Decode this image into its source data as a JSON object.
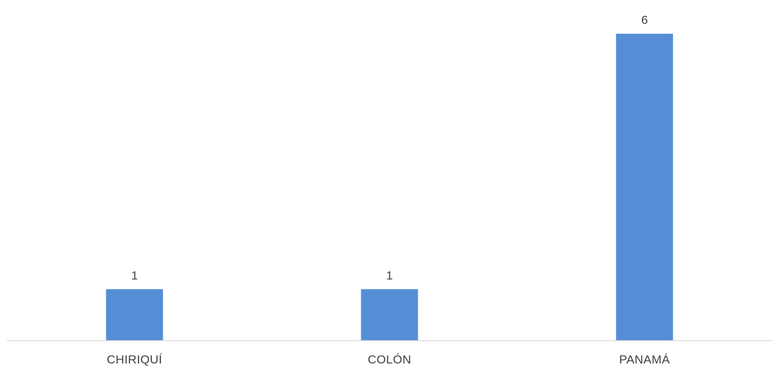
{
  "chart_data": {
    "type": "bar",
    "categories": [
      "CHIRIQUÍ",
      "COLÓN",
      "PANAMÁ"
    ],
    "values": [
      1,
      1,
      6
    ],
    "title": "",
    "xlabel": "",
    "ylabel": "",
    "ylim": [
      0,
      6
    ],
    "grid": false,
    "legend": "none",
    "data_labels": true,
    "colors": {
      "bar": "#558ED5",
      "axis": "#D9D9D9",
      "text": "#404040"
    }
  }
}
